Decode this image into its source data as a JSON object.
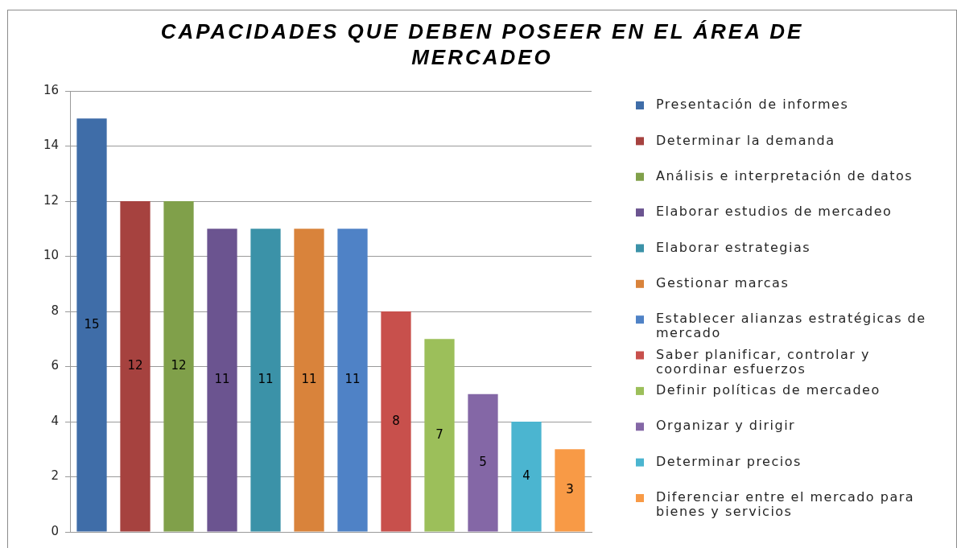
{
  "chart_data": {
    "type": "bar",
    "title": "CAPACIDADES QUE DEBEN POSEER EN EL ÁREA DE MERCADEO",
    "categories": [
      null,
      null,
      null,
      null,
      null,
      null,
      null,
      null,
      null,
      null,
      null,
      null
    ],
    "series": [
      {
        "name": "Presentación de informes",
        "color": "#3f6da8",
        "values": [
          15,
          null,
          null,
          null,
          null,
          null,
          null,
          null,
          null,
          null,
          null,
          null
        ]
      },
      {
        "name": "Determinar la demanda",
        "color": "#a6423f",
        "values": [
          null,
          12,
          null,
          null,
          null,
          null,
          null,
          null,
          null,
          null,
          null,
          null
        ]
      },
      {
        "name": "Análisis e interpretación de datos",
        "color": "#80a04a",
        "values": [
          null,
          null,
          12,
          null,
          null,
          null,
          null,
          null,
          null,
          null,
          null,
          null
        ]
      },
      {
        "name": "Elaborar estudios de mercadeo",
        "color": "#6b5490",
        "values": [
          null,
          null,
          null,
          11,
          null,
          null,
          null,
          null,
          null,
          null,
          null,
          null
        ]
      },
      {
        "name": "Elaborar estrategias",
        "color": "#3b92a8",
        "values": [
          null,
          null,
          null,
          null,
          11,
          null,
          null,
          null,
          null,
          null,
          null,
          null
        ]
      },
      {
        "name": "Gestionar marcas",
        "color": "#d9833b",
        "values": [
          null,
          null,
          null,
          null,
          null,
          11,
          null,
          null,
          null,
          null,
          null,
          null
        ]
      },
      {
        "name": "Establecer alianzas estratégicas de mercado",
        "color": "#4f82c6",
        "values": [
          null,
          null,
          null,
          null,
          null,
          null,
          11,
          null,
          null,
          null,
          null,
          null
        ]
      },
      {
        "name": "Saber planificar, controlar y coordinar esfuerzos",
        "color": "#c8504c",
        "values": [
          null,
          null,
          null,
          null,
          null,
          null,
          null,
          8,
          null,
          null,
          null,
          null
        ]
      },
      {
        "name": "Definir políticas de mercadeo",
        "color": "#9cbf5a",
        "values": [
          null,
          null,
          null,
          null,
          null,
          null,
          null,
          null,
          7,
          null,
          null,
          null
        ]
      },
      {
        "name": "Organizar y dirigir",
        "color": "#8467a6",
        "values": [
          null,
          null,
          null,
          null,
          null,
          null,
          null,
          null,
          null,
          5,
          null,
          null
        ]
      },
      {
        "name": "Determinar precios",
        "color": "#4bb5d0",
        "values": [
          null,
          null,
          null,
          null,
          null,
          null,
          null,
          null,
          null,
          null,
          4,
          null
        ]
      },
      {
        "name": "Diferenciar entre el mercado para bienes y servicios",
        "color": "#f89a46",
        "values": [
          null,
          null,
          null,
          null,
          null,
          null,
          null,
          null,
          null,
          null,
          null,
          3
        ]
      }
    ],
    "ylim": [
      0,
      16
    ],
    "yticks": [
      0,
      2,
      4,
      6,
      8,
      10,
      12,
      14,
      16
    ],
    "grid": "y",
    "legend": "right",
    "tick_labels": "y",
    "data_labels": true
  }
}
